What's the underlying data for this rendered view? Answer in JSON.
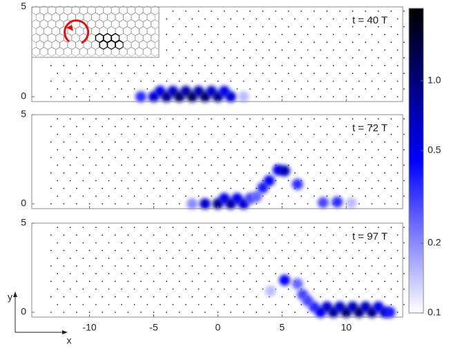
{
  "chart_data": [
    {
      "type": "density",
      "annotation": "t = 40 T",
      "xlim": [
        -14.5,
        14.4
      ],
      "ylim": [
        -0.27,
        5
      ],
      "yticks": [
        0,
        5
      ],
      "x": [
        -6,
        -5,
        -4.5,
        -4,
        -3.5,
        -3,
        -2.5,
        -2,
        -1.5,
        -1,
        -0.5,
        0,
        0.5,
        1,
        2
      ],
      "y": [
        0,
        0,
        0.3,
        0,
        0.3,
        0,
        0.3,
        0,
        0.3,
        0,
        0.3,
        0,
        0.3,
        0,
        0
      ],
      "values": [
        0.35,
        0.6,
        0.5,
        0.9,
        0.6,
        1.1,
        0.7,
        1.2,
        0.7,
        1.1,
        0.6,
        0.9,
        0.5,
        0.6,
        0.15
      ]
    },
    {
      "type": "density",
      "annotation": "t = 72 T",
      "xlim": [
        -14.5,
        14.4
      ],
      "ylim": [
        -0.27,
        5
      ],
      "yticks": [
        0,
        5
      ],
      "x": [
        -2,
        -1,
        0,
        0.5,
        1,
        1.5,
        2,
        2.5,
        3,
        3.5,
        4,
        4.7,
        5.2,
        6.2,
        8.2,
        9.3,
        10.4
      ],
      "y": [
        0,
        0,
        0,
        0.3,
        0,
        0.3,
        0,
        0.3,
        0.4,
        0.9,
        1.3,
        1.9,
        1.85,
        1.1,
        0.07,
        0.1,
        0.05
      ],
      "values": [
        0.2,
        0.6,
        0.9,
        0.5,
        0.8,
        0.5,
        0.6,
        0.3,
        0.25,
        0.4,
        0.45,
        0.5,
        0.7,
        0.35,
        0.3,
        0.35,
        0.15
      ]
    },
    {
      "type": "density",
      "annotation": "t = 97 T",
      "xlabel": "x",
      "ylabel": "y",
      "xlim": [
        -14.5,
        14.4
      ],
      "ylim": [
        -0.27,
        5
      ],
      "yticks": [
        0,
        5
      ],
      "xticks": [
        -10,
        -5,
        0,
        5,
        10
      ],
      "x": [
        4.1,
        5.2,
        6.2,
        6.6,
        7,
        7.5,
        8,
        8.5,
        9,
        9.5,
        10,
        10.5,
        11,
        11.5,
        12,
        12.5,
        13,
        13.4
      ],
      "y": [
        1.2,
        1.8,
        1.6,
        1.0,
        0.65,
        0.3,
        0,
        0.3,
        0,
        0.3,
        0,
        0.3,
        0,
        0.3,
        0,
        0.3,
        0,
        0
      ],
      "values": [
        0.15,
        0.45,
        0.25,
        0.3,
        0.3,
        0.35,
        0.5,
        0.6,
        0.8,
        0.6,
        1.0,
        0.65,
        1.0,
        0.65,
        0.9,
        0.5,
        0.6,
        0.4
      ]
    },
    {
      "type": "colorbar",
      "scale": "log",
      "clim": [
        0.1,
        2.05
      ],
      "colormap": [
        "#ffffff",
        "#0000ff",
        "#000000"
      ],
      "ticks": [
        {
          "value": 1,
          "label": "1.0"
        },
        0.5,
        0.2,
        0.1
      ]
    }
  ]
}
